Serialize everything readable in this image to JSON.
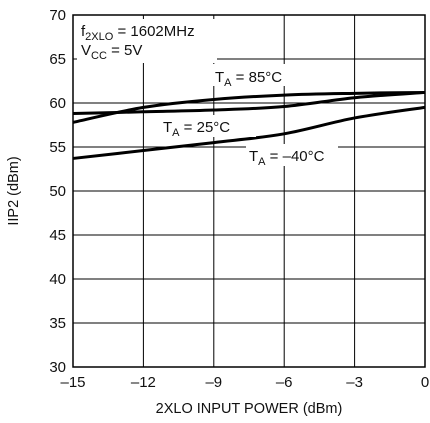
{
  "chart_data": {
    "type": "line",
    "xlabel": "2XLO INPUT POWER (dBm)",
    "ylabel": "IIP2 (dBm)",
    "xlim": [
      -15,
      0
    ],
    "ylim": [
      30,
      70
    ],
    "xticks": [
      -15,
      -12,
      -9,
      -6,
      -3,
      0
    ],
    "yticks": [
      30,
      35,
      40,
      45,
      50,
      55,
      60,
      65,
      70
    ],
    "xtick_labels": [
      "–15",
      "–12",
      "–9",
      "–6",
      "–3",
      "0"
    ],
    "grid": true,
    "annotations": {
      "freq": {
        "main": "f",
        "sub": "2XLO",
        "rest": " = 1602MHz"
      },
      "vcc": {
        "main": "V",
        "sub": "CC",
        "rest": " = 5V"
      }
    },
    "series": [
      {
        "name": "T_A = 85°C",
        "label": {
          "main": "T",
          "sub": "A",
          "rest": " = 85°C"
        },
        "x": [
          -15,
          -12,
          -9,
          -6,
          -3,
          0
        ],
        "y": [
          57.8,
          59.5,
          60.4,
          60.9,
          61.1,
          61.2
        ]
      },
      {
        "name": "T_A = 25°C",
        "label": {
          "main": "T",
          "sub": "A",
          "rest": " = 25°C"
        },
        "x": [
          -15,
          -12,
          -9,
          -6,
          -3,
          0
        ],
        "y": [
          58.8,
          59.0,
          59.2,
          59.6,
          60.6,
          61.2
        ]
      },
      {
        "name": "T_A = –40°C",
        "label": {
          "main": "T",
          "sub": "A",
          "rest": " = –40°C"
        },
        "x": [
          -15,
          -12,
          -9,
          -6,
          -3,
          0
        ],
        "y": [
          53.7,
          54.6,
          55.5,
          56.5,
          58.3,
          59.5
        ]
      }
    ]
  }
}
